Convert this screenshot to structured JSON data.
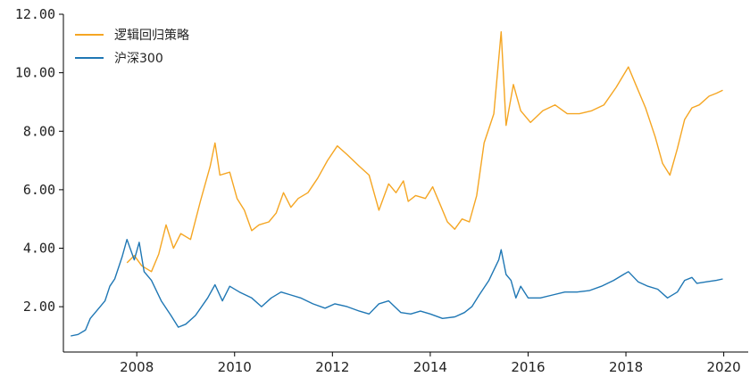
{
  "chart_data": {
    "type": "line",
    "title": "",
    "xlabel": "",
    "ylabel": "",
    "xlim": [
      2006.5,
      2020.5
    ],
    "ylim": [
      0.45,
      12.0
    ],
    "grid": false,
    "legend_position": "top-left",
    "y_ticks": [
      2,
      4,
      6,
      8,
      10,
      12
    ],
    "y_tick_labels": [
      "2.00",
      "4.00",
      "6.00",
      "8.00",
      "10.00",
      "12.00"
    ],
    "x_ticks": [
      2008,
      2010,
      2012,
      2014,
      2016,
      2018,
      2020
    ],
    "x_tick_labels": [
      "2008",
      "2010",
      "2012",
      "2014",
      "2016",
      "2018",
      "2020"
    ],
    "series": [
      {
        "name": "逻辑回归策略",
        "color": "#f5a623",
        "points": [
          [
            2007.8,
            3.5
          ],
          [
            2007.95,
            3.75
          ],
          [
            2008.1,
            3.4
          ],
          [
            2008.3,
            3.2
          ],
          [
            2008.45,
            3.8
          ],
          [
            2008.6,
            4.8
          ],
          [
            2008.75,
            4.0
          ],
          [
            2008.9,
            4.5
          ],
          [
            2009.1,
            4.3
          ],
          [
            2009.3,
            5.6
          ],
          [
            2009.5,
            6.8
          ],
          [
            2009.6,
            7.6
          ],
          [
            2009.7,
            6.5
          ],
          [
            2009.9,
            6.6
          ],
          [
            2010.05,
            5.7
          ],
          [
            2010.2,
            5.3
          ],
          [
            2010.35,
            4.6
          ],
          [
            2010.5,
            4.8
          ],
          [
            2010.7,
            4.9
          ],
          [
            2010.85,
            5.2
          ],
          [
            2011.0,
            5.9
          ],
          [
            2011.15,
            5.4
          ],
          [
            2011.3,
            5.7
          ],
          [
            2011.5,
            5.9
          ],
          [
            2011.7,
            6.4
          ],
          [
            2011.9,
            7.0
          ],
          [
            2012.1,
            7.5
          ],
          [
            2012.3,
            7.2
          ],
          [
            2012.55,
            6.8
          ],
          [
            2012.75,
            6.5
          ],
          [
            2012.95,
            5.3
          ],
          [
            2013.15,
            6.2
          ],
          [
            2013.3,
            5.9
          ],
          [
            2013.45,
            6.3
          ],
          [
            2013.55,
            5.6
          ],
          [
            2013.7,
            5.8
          ],
          [
            2013.9,
            5.7
          ],
          [
            2014.05,
            6.1
          ],
          [
            2014.2,
            5.5
          ],
          [
            2014.35,
            4.9
          ],
          [
            2014.5,
            4.65
          ],
          [
            2014.65,
            5.0
          ],
          [
            2014.8,
            4.9
          ],
          [
            2014.95,
            5.8
          ],
          [
            2015.1,
            7.6
          ],
          [
            2015.3,
            8.6
          ],
          [
            2015.45,
            11.4
          ],
          [
            2015.55,
            8.2
          ],
          [
            2015.7,
            9.6
          ],
          [
            2015.85,
            8.7
          ],
          [
            2016.05,
            8.3
          ],
          [
            2016.3,
            8.7
          ],
          [
            2016.55,
            8.9
          ],
          [
            2016.8,
            8.6
          ],
          [
            2017.05,
            8.6
          ],
          [
            2017.3,
            8.7
          ],
          [
            2017.55,
            8.9
          ],
          [
            2017.8,
            9.5
          ],
          [
            2018.05,
            10.2
          ],
          [
            2018.2,
            9.6
          ],
          [
            2018.4,
            8.8
          ],
          [
            2018.6,
            7.8
          ],
          [
            2018.75,
            6.9
          ],
          [
            2018.9,
            6.5
          ],
          [
            2019.05,
            7.4
          ],
          [
            2019.2,
            8.4
          ],
          [
            2019.35,
            8.8
          ],
          [
            2019.5,
            8.9
          ],
          [
            2019.7,
            9.2
          ],
          [
            2019.85,
            9.3
          ],
          [
            2019.98,
            9.4
          ]
        ]
      },
      {
        "name": "沪深300",
        "color": "#1f77b4",
        "points": [
          [
            2006.65,
            1.0
          ],
          [
            2006.8,
            1.05
          ],
          [
            2006.95,
            1.2
          ],
          [
            2007.05,
            1.6
          ],
          [
            2007.2,
            1.9
          ],
          [
            2007.35,
            2.2
          ],
          [
            2007.45,
            2.7
          ],
          [
            2007.55,
            2.95
          ],
          [
            2007.7,
            3.7
          ],
          [
            2007.8,
            4.3
          ],
          [
            2007.95,
            3.6
          ],
          [
            2008.05,
            4.2
          ],
          [
            2008.15,
            3.2
          ],
          [
            2008.3,
            2.9
          ],
          [
            2008.5,
            2.2
          ],
          [
            2008.7,
            1.7
          ],
          [
            2008.85,
            1.3
          ],
          [
            2009.0,
            1.4
          ],
          [
            2009.2,
            1.7
          ],
          [
            2009.45,
            2.3
          ],
          [
            2009.6,
            2.75
          ],
          [
            2009.75,
            2.2
          ],
          [
            2009.9,
            2.7
          ],
          [
            2010.1,
            2.5
          ],
          [
            2010.35,
            2.3
          ],
          [
            2010.55,
            2.0
          ],
          [
            2010.75,
            2.3
          ],
          [
            2010.95,
            2.5
          ],
          [
            2011.15,
            2.4
          ],
          [
            2011.35,
            2.3
          ],
          [
            2011.6,
            2.1
          ],
          [
            2011.85,
            1.95
          ],
          [
            2012.05,
            2.1
          ],
          [
            2012.3,
            2.0
          ],
          [
            2012.55,
            1.85
          ],
          [
            2012.75,
            1.75
          ],
          [
            2012.95,
            2.1
          ],
          [
            2013.15,
            2.2
          ],
          [
            2013.4,
            1.8
          ],
          [
            2013.6,
            1.75
          ],
          [
            2013.8,
            1.85
          ],
          [
            2014.0,
            1.75
          ],
          [
            2014.25,
            1.6
          ],
          [
            2014.5,
            1.65
          ],
          [
            2014.7,
            1.8
          ],
          [
            2014.85,
            2.0
          ],
          [
            2015.0,
            2.4
          ],
          [
            2015.2,
            2.9
          ],
          [
            2015.4,
            3.6
          ],
          [
            2015.45,
            3.95
          ],
          [
            2015.55,
            3.1
          ],
          [
            2015.65,
            2.9
          ],
          [
            2015.75,
            2.3
          ],
          [
            2015.85,
            2.7
          ],
          [
            2016.0,
            2.3
          ],
          [
            2016.25,
            2.3
          ],
          [
            2016.5,
            2.4
          ],
          [
            2016.75,
            2.5
          ],
          [
            2017.0,
            2.5
          ],
          [
            2017.25,
            2.55
          ],
          [
            2017.5,
            2.7
          ],
          [
            2017.75,
            2.9
          ],
          [
            2017.95,
            3.1
          ],
          [
            2018.05,
            3.2
          ],
          [
            2018.25,
            2.85
          ],
          [
            2018.45,
            2.7
          ],
          [
            2018.65,
            2.6
          ],
          [
            2018.85,
            2.3
          ],
          [
            2019.05,
            2.5
          ],
          [
            2019.2,
            2.9
          ],
          [
            2019.35,
            3.0
          ],
          [
            2019.45,
            2.8
          ],
          [
            2019.65,
            2.85
          ],
          [
            2019.85,
            2.9
          ],
          [
            2019.98,
            2.95
          ]
        ]
      }
    ]
  }
}
